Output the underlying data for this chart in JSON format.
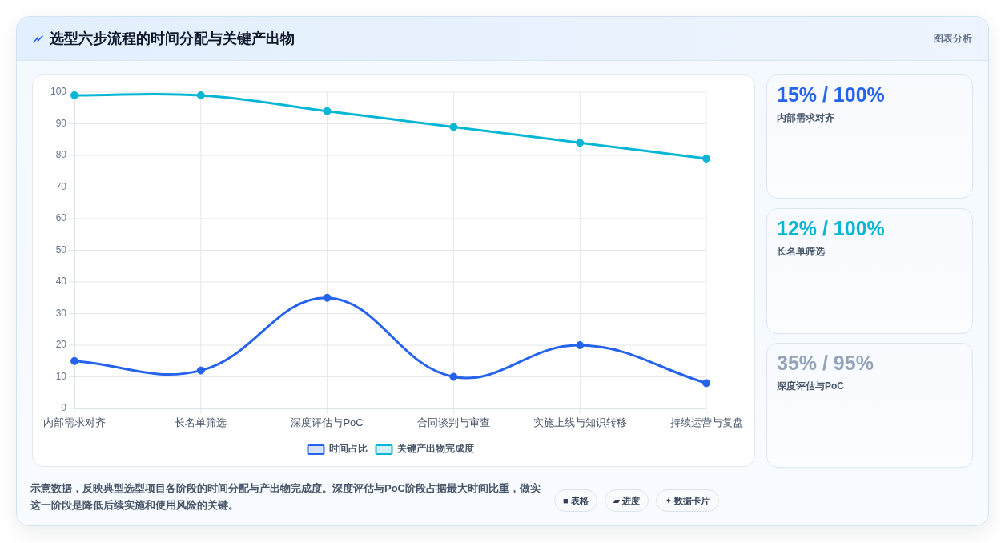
{
  "chart_data": [
    {
      "type": "line",
      "title": "选型六步流程的时间分配与关键产出物",
      "annotations": [
        "图表分析",
        "示意数据，反映典型选型项目各阶段的时间分配与产出物完成度。深度评估与PoC阶段占据最大时间比重，做实这一阶段是降低后续实施和使用风险的关键。",
        "■ 表格",
        "▰ 进度",
        "✦ 数据卡片"
      ],
      "categories": [
        "内部需求对齐",
        "长名单筛选",
        "深度评估与PoC",
        "合同谈判与审查",
        "实施上线与知识转移",
        "持续运营与复盘"
      ],
      "series": [
        {
          "name": "时间占比",
          "color": "#2563eb",
          "values": [
            15,
            12,
            35,
            10,
            20,
            8
          ]
        },
        {
          "name": "关键产出物完成度",
          "color": "#06b6d4",
          "values": [
            99,
            99,
            94,
            89,
            84,
            79
          ]
        }
      ],
      "ylim": [
        0,
        100
      ],
      "yticks": [
        0,
        10,
        20,
        30,
        40,
        50,
        60,
        70,
        80,
        90,
        100
      ],
      "grid": true,
      "legend": "bottom",
      "marker": "circle",
      "line_style": "solid"
    },
    {
      "type": "other",
      "title": "15% / 100%",
      "subtitle": "内部需求对齐"
    },
    {
      "type": "other",
      "title": "12% / 100%",
      "subtitle": "长名单筛选"
    },
    {
      "type": "other",
      "title": "35% / 95%",
      "subtitle": "深度评估与PoC"
    }
  ]
}
